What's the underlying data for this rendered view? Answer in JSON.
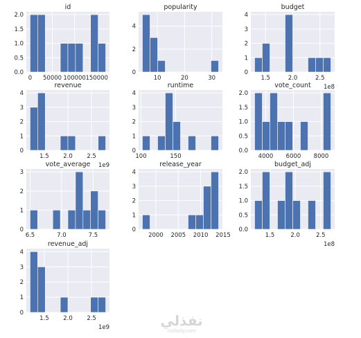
{
  "chart_data": [
    {
      "type": "bar",
      "title": "id",
      "bins": [
        [
          0,
          17000,
          2
        ],
        [
          17000,
          34000,
          2
        ],
        [
          34000,
          51000,
          0
        ],
        [
          51000,
          68000,
          0
        ],
        [
          68000,
          85000,
          1
        ],
        [
          85000,
          102000,
          1
        ],
        [
          102000,
          119000,
          1
        ],
        [
          119000,
          136000,
          0
        ],
        [
          136000,
          153000,
          2
        ],
        [
          153000,
          170000,
          1
        ]
      ],
      "xlim": [
        -8500,
        178500
      ],
      "ylim": [
        0,
        2.1
      ],
      "xticks": [
        0,
        50000,
        100000,
        150000
      ],
      "xtick_labels": [
        "0",
        "50000",
        "100000",
        "150000"
      ],
      "yticks": [
        0,
        0.5,
        1,
        1.5,
        2
      ],
      "ytick_labels": [
        "0.0",
        "0.5",
        "1.0",
        "1.5",
        "2.0"
      ],
      "offset_label": ""
    },
    {
      "type": "bar",
      "title": "popularity",
      "bins": [
        [
          4.5,
          7.3,
          5
        ],
        [
          7.3,
          10.1,
          3
        ],
        [
          10.1,
          12.9,
          1
        ],
        [
          12.9,
          15.7,
          0
        ],
        [
          15.7,
          18.5,
          0
        ],
        [
          18.5,
          21.3,
          0
        ],
        [
          21.3,
          24.1,
          0
        ],
        [
          24.1,
          26.9,
          0
        ],
        [
          26.9,
          29.7,
          0
        ],
        [
          29.7,
          32.5,
          1
        ]
      ],
      "xlim": [
        3.1,
        33.9
      ],
      "ylim": [
        0,
        5.25
      ],
      "xticks": [
        10,
        20,
        30
      ],
      "xtick_labels": [
        "10",
        "20",
        "30"
      ],
      "yticks": [
        0,
        2,
        4
      ],
      "ytick_labels": [
        "0",
        "2",
        "4"
      ],
      "offset_label": ""
    },
    {
      "type": "bar",
      "title": "budget",
      "bins": [
        [
          1.3,
          1.44,
          1
        ],
        [
          1.44,
          1.58,
          2
        ],
        [
          1.58,
          1.72,
          0
        ],
        [
          1.72,
          1.86,
          0
        ],
        [
          1.86,
          2.0,
          4
        ],
        [
          2.0,
          2.14,
          0
        ],
        [
          2.14,
          2.28,
          0
        ],
        [
          2.28,
          2.42,
          1
        ],
        [
          2.42,
          2.56,
          1
        ],
        [
          2.56,
          2.7,
          1
        ]
      ],
      "xlim": [
        1.23,
        2.77
      ],
      "ylim": [
        0,
        4.2
      ],
      "xticks": [
        1.5,
        2.0,
        2.5
      ],
      "xtick_labels": [
        "1.5",
        "2.0",
        "2.5"
      ],
      "yticks": [
        0,
        1,
        2,
        3,
        4
      ],
      "ytick_labels": [
        "0",
        "1",
        "2",
        "3",
        "4"
      ],
      "offset_label": "1e8"
    },
    {
      "type": "bar",
      "title": "revenue",
      "bins": [
        [
          1.2,
          1.36,
          3
        ],
        [
          1.36,
          1.52,
          4
        ],
        [
          1.52,
          1.68,
          0
        ],
        [
          1.68,
          1.84,
          0
        ],
        [
          1.84,
          2.0,
          1
        ],
        [
          2.0,
          2.16,
          1
        ],
        [
          2.16,
          2.32,
          0
        ],
        [
          2.32,
          2.48,
          0
        ],
        [
          2.48,
          2.64,
          0
        ],
        [
          2.64,
          2.8,
          1
        ]
      ],
      "xlim": [
        1.12,
        2.88
      ],
      "ylim": [
        0,
        4.2
      ],
      "xticks": [
        1.5,
        2.0,
        2.5
      ],
      "xtick_labels": [
        "1.5",
        "2.0",
        "2.5"
      ],
      "yticks": [
        0,
        1,
        2,
        3,
        4
      ],
      "ytick_labels": [
        "0",
        "1",
        "2",
        "3",
        "4"
      ],
      "offset_label": "1e9"
    },
    {
      "type": "bar",
      "title": "runtime",
      "bins": [
        [
          102,
          113,
          1
        ],
        [
          113,
          124,
          0
        ],
        [
          124,
          135,
          1
        ],
        [
          135,
          146,
          4
        ],
        [
          146,
          157,
          2
        ],
        [
          157,
          168,
          0
        ],
        [
          168,
          179,
          1
        ],
        [
          179,
          190,
          0
        ],
        [
          190,
          201,
          0
        ],
        [
          201,
          212,
          1
        ]
      ],
      "xlim": [
        96.5,
        217.5
      ],
      "ylim": [
        0,
        4.2
      ],
      "xticks": [
        100,
        150
      ],
      "xtick_labels": [
        "100",
        "150"
      ],
      "yticks": [
        0,
        1,
        2,
        3,
        4
      ],
      "ytick_labels": [
        "0",
        "1",
        "2",
        "3",
        "4"
      ],
      "offset_label": ""
    },
    {
      "type": "bar",
      "title": "vote_count",
      "bins": [
        [
          3200,
          3750,
          2
        ],
        [
          3750,
          4300,
          1
        ],
        [
          4300,
          4850,
          2
        ],
        [
          4850,
          5400,
          1
        ],
        [
          5400,
          5950,
          1
        ],
        [
          5950,
          6500,
          0
        ],
        [
          6500,
          7050,
          1
        ],
        [
          7050,
          7600,
          0
        ],
        [
          7600,
          8150,
          0
        ],
        [
          8150,
          8700,
          2
        ]
      ],
      "xlim": [
        2925,
        8975
      ],
      "ylim": [
        0,
        2.1
      ],
      "xticks": [
        4000,
        6000,
        8000
      ],
      "xtick_labels": [
        "4000",
        "6000",
        "8000"
      ],
      "yticks": [
        0,
        0.5,
        1,
        1.5,
        2
      ],
      "ytick_labels": [
        "0.0",
        "0.5",
        "1.0",
        "1.5",
        "2.0"
      ],
      "offset_label": ""
    },
    {
      "type": "bar",
      "title": "vote_average",
      "bins": [
        [
          6.5,
          6.62,
          1
        ],
        [
          6.62,
          6.74,
          0
        ],
        [
          6.74,
          6.86,
          0
        ],
        [
          6.86,
          6.98,
          1
        ],
        [
          6.98,
          7.1,
          0
        ],
        [
          7.1,
          7.22,
          1
        ],
        [
          7.22,
          7.34,
          3
        ],
        [
          7.34,
          7.46,
          1
        ],
        [
          7.46,
          7.58,
          2
        ],
        [
          7.58,
          7.7,
          1
        ]
      ],
      "xlim": [
        6.44,
        7.76
      ],
      "ylim": [
        0,
        3.15
      ],
      "xticks": [
        6.5,
        7.0,
        7.5
      ],
      "xtick_labels": [
        "6.5",
        "7.0",
        "7.5"
      ],
      "yticks": [
        0,
        1,
        2,
        3
      ],
      "ytick_labels": [
        "0",
        "1",
        "2",
        "3"
      ],
      "offset_label": ""
    },
    {
      "type": "bar",
      "title": "release_year",
      "bins": [
        [
          1997,
          1998.7,
          1
        ],
        [
          1998.7,
          2000.4,
          0
        ],
        [
          2000.4,
          2002.1,
          0
        ],
        [
          2002.1,
          2003.8,
          0
        ],
        [
          2003.8,
          2005.5,
          0
        ],
        [
          2005.5,
          2007.2,
          0
        ],
        [
          2007.2,
          2008.9,
          1
        ],
        [
          2008.9,
          2010.6,
          1
        ],
        [
          2010.6,
          2012.3,
          3
        ],
        [
          2012.3,
          2014,
          4
        ]
      ],
      "xlim": [
        1996.15,
        2014.85
      ],
      "ylim": [
        0,
        4.2
      ],
      "xticks": [
        2000,
        2005,
        2010,
        2015
      ],
      "xtick_labels": [
        "2000",
        "2005",
        "2010",
        "2015"
      ],
      "yticks": [
        0,
        1,
        2,
        3,
        4
      ],
      "ytick_labels": [
        "0",
        "1",
        "2",
        "3",
        "4"
      ],
      "offset_label": ""
    },
    {
      "type": "bar",
      "title": "budget_adj",
      "bins": [
        [
          1.2,
          1.35,
          1
        ],
        [
          1.35,
          1.5,
          2
        ],
        [
          1.5,
          1.65,
          0
        ],
        [
          1.65,
          1.8,
          1
        ],
        [
          1.8,
          1.95,
          2
        ],
        [
          1.95,
          2.1,
          1
        ],
        [
          2.1,
          2.25,
          0
        ],
        [
          2.25,
          2.4,
          1
        ],
        [
          2.4,
          2.55,
          0
        ],
        [
          2.55,
          2.7,
          2
        ]
      ],
      "xlim": [
        1.125,
        2.775
      ],
      "ylim": [
        0,
        2.1
      ],
      "xticks": [
        1.5,
        2.0,
        2.5
      ],
      "xtick_labels": [
        "1.5",
        "2.0",
        "2.5"
      ],
      "yticks": [
        0,
        0.5,
        1,
        1.5,
        2
      ],
      "ytick_labels": [
        "0.0",
        "0.5",
        "1.0",
        "1.5",
        "2.0"
      ],
      "offset_label": "1e8"
    },
    {
      "type": "bar",
      "title": "revenue_adj",
      "bins": [
        [
          1.2,
          1.36,
          4
        ],
        [
          1.36,
          1.52,
          3
        ],
        [
          1.52,
          1.68,
          0
        ],
        [
          1.68,
          1.84,
          0
        ],
        [
          1.84,
          2.0,
          1
        ],
        [
          2.0,
          2.16,
          0
        ],
        [
          2.16,
          2.32,
          0
        ],
        [
          2.32,
          2.48,
          0
        ],
        [
          2.48,
          2.64,
          1
        ],
        [
          2.64,
          2.8,
          1
        ]
      ],
      "xlim": [
        1.12,
        2.88
      ],
      "ylim": [
        0,
        4.2
      ],
      "xticks": [
        1.5,
        2.0,
        2.5
      ],
      "xtick_labels": [
        "1.5",
        "2.0",
        "2.5"
      ],
      "yticks": [
        0,
        1,
        2,
        3,
        4
      ],
      "ytick_labels": [
        "0",
        "1",
        "2",
        "3",
        "4"
      ],
      "offset_label": "1e9"
    }
  ],
  "colors": {
    "bar": "#4c72b0",
    "plot_bg": "#eaeaf2",
    "grid": "#ffffff",
    "text": "#262626"
  },
  "watermark": {
    "logo": "نفذلي",
    "site": "nafezly.com"
  }
}
